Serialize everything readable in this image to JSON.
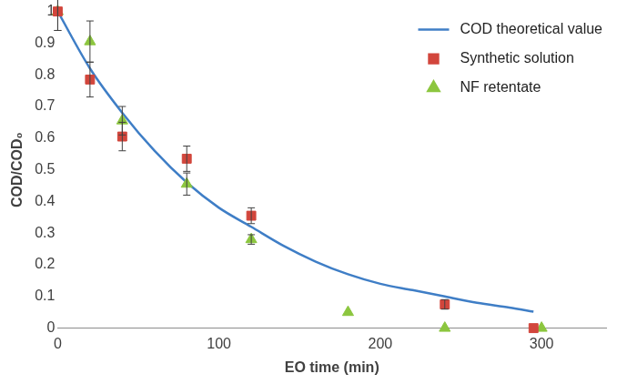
{
  "chart_data": {
    "type": "scatter",
    "x_label": "EO time (min)",
    "y_label": "COD/COD₀",
    "xlim": [
      0,
      340
    ],
    "xticks": [
      0,
      100,
      200,
      300
    ],
    "ylim": [
      0,
      1
    ],
    "yticks": [
      0,
      0.1,
      0.2,
      0.3,
      0.4,
      0.5,
      0.6,
      0.7,
      0.8,
      0.9,
      1
    ],
    "grid": false,
    "legend": "upper right",
    "series": [
      {
        "name": "COD theoretical value",
        "type": "line",
        "color": "#3f7ec6",
        "marker": "none",
        "line_style": "solid",
        "x": [
          0,
          20,
          40,
          60,
          80,
          100,
          120,
          140,
          160,
          180,
          200,
          220,
          240,
          260,
          280,
          295
        ],
        "values": [
          1,
          0.82,
          0.68,
          0.56,
          0.46,
          0.38,
          0.32,
          0.26,
          0.21,
          0.17,
          0.14,
          0.12,
          0.1,
          0.08,
          0.065,
          0.052
        ]
      },
      {
        "name": "Synthetic solution",
        "type": "scatter",
        "color": "#d2463c",
        "marker": "square",
        "x": [
          0,
          20,
          40,
          80,
          120,
          240,
          295
        ],
        "values": [
          1,
          0.785,
          0.605,
          0.535,
          0.355,
          0.075,
          0
        ],
        "errors": [
          0.06,
          0.055,
          0.045,
          0.04,
          0.025,
          0.015,
          null
        ]
      },
      {
        "name": "NF retentate",
        "type": "scatter",
        "color": "#8cc63f",
        "marker": "triangle",
        "x": [
          0,
          20,
          40,
          80,
          120,
          180,
          240,
          300
        ],
        "values": [
          1,
          0.905,
          0.655,
          0.455,
          0.28,
          0.05,
          0,
          0
        ],
        "errors": [
          0.06,
          0.065,
          0.045,
          0.035,
          0.015,
          null,
          null,
          null
        ]
      }
    ]
  }
}
